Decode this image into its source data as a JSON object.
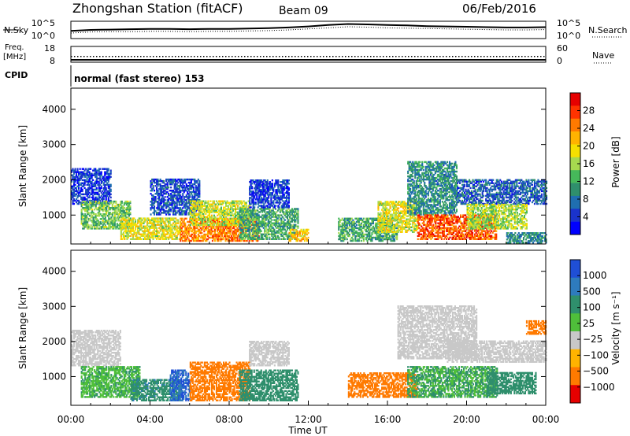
{
  "header": {
    "title": "Zhongshan Station (fitACF)",
    "beam": "Beam 09",
    "date": "06/Feb/2016"
  },
  "chart_data": [
    {
      "type": "line",
      "panel": "noise",
      "left_label": "N.Sky",
      "right_label": "N.Search",
      "left_ticks": [
        "10^5",
        "10^0"
      ],
      "right_ticks": [
        "10^5",
        "10^0"
      ],
      "x": [
        0,
        1,
        2,
        3,
        4,
        5,
        6,
        7,
        8,
        9,
        10,
        11,
        12,
        13,
        14,
        15,
        16,
        17,
        18,
        19,
        20,
        21,
        22,
        23,
        24
      ],
      "series": [
        {
          "name": "N.Sky",
          "style": "solid",
          "values": [
            2.2,
            2.5,
            2.6,
            2.7,
            2.8,
            2.8,
            2.7,
            2.8,
            2.8,
            2.9,
            3.0,
            3.2,
            3.5,
            3.9,
            4.2,
            4.1,
            3.9,
            3.8,
            3.6,
            3.5,
            3.4,
            3.3,
            3.2,
            3.2,
            3.3
          ]
        },
        {
          "name": "N.Search",
          "style": "dotted",
          "values": [
            1.6,
            1.9,
            2.0,
            2.0,
            2.1,
            2.1,
            2.0,
            2.1,
            2.1,
            2.2,
            2.3,
            2.5,
            2.8,
            3.1,
            3.4,
            3.3,
            3.1,
            3.0,
            2.9,
            2.8,
            2.7,
            2.6,
            2.5,
            2.5,
            2.6
          ]
        }
      ],
      "ylim": [
        0,
        5
      ]
    },
    {
      "type": "line",
      "panel": "frequency",
      "left_label_lines": [
        "Freq.",
        "[MHz]"
      ],
      "right_label": "Nave",
      "left_ticks": [
        "18",
        "8"
      ],
      "right_ticks": [
        "60",
        "0"
      ],
      "series": [
        {
          "name": "Freq.",
          "style": "solid",
          "x": [
            0,
            24
          ],
          "values": [
            9.5,
            9.5
          ]
        },
        {
          "name": "Nave",
          "style": "dotted",
          "x": [
            0,
            24
          ],
          "values": [
            22,
            22
          ]
        }
      ],
      "ylim": [
        8,
        18
      ]
    },
    {
      "type": "text",
      "panel": "cpid",
      "left_label": "CPID",
      "text": "normal (fast stereo) 153"
    },
    {
      "type": "heatmap",
      "panel": "power",
      "ylabel": "Slant Range [km]",
      "yticks": [
        1000,
        2000,
        3000,
        4000
      ],
      "ylim": [
        180,
        4600
      ],
      "xlim": [
        0,
        24
      ],
      "colorbar": {
        "label": "Power [dB]",
        "ticks": [
          "28",
          "24",
          "20",
          "16",
          "12",
          "8",
          "4"
        ],
        "colors": [
          "#e60000",
          "#ff3300",
          "#ff7a00",
          "#ffb300",
          "#f5e000",
          "#a6d94f",
          "#46b85a",
          "#2f8f6c",
          "#1f6eb0",
          "#1a33cc",
          "#0000ff"
        ]
      },
      "bands": [
        {
          "t0": 0.0,
          "t1": 2.0,
          "r0": 1300,
          "r1": 2300,
          "level": 5
        },
        {
          "t0": 0.5,
          "t1": 3.0,
          "r0": 600,
          "r1": 1400,
          "level": 14
        },
        {
          "t0": 2.5,
          "t1": 5.5,
          "r0": 300,
          "r1": 900,
          "level": 18
        },
        {
          "t0": 4.0,
          "t1": 6.5,
          "r0": 1000,
          "r1": 2000,
          "level": 6
        },
        {
          "t0": 5.5,
          "t1": 9.5,
          "r0": 250,
          "r1": 900,
          "level": 24
        },
        {
          "t0": 6.0,
          "t1": 9.0,
          "r0": 700,
          "r1": 1400,
          "level": 17
        },
        {
          "t0": 8.5,
          "t1": 11.5,
          "r0": 300,
          "r1": 1200,
          "level": 12
        },
        {
          "t0": 9.0,
          "t1": 11.0,
          "r0": 1200,
          "r1": 2000,
          "level": 5
        },
        {
          "t0": 11.0,
          "t1": 12.0,
          "r0": 250,
          "r1": 600,
          "level": 20
        },
        {
          "t0": 13.5,
          "t1": 16.5,
          "r0": 250,
          "r1": 900,
          "level": 12
        },
        {
          "t0": 15.5,
          "t1": 17.5,
          "r0": 500,
          "r1": 1400,
          "level": 18
        },
        {
          "t0": 17.0,
          "t1": 19.5,
          "r0": 1000,
          "r1": 2500,
          "level": 10
        },
        {
          "t0": 17.5,
          "t1": 21.5,
          "r0": 300,
          "r1": 1000,
          "level": 26
        },
        {
          "t0": 19.5,
          "t1": 24.0,
          "r0": 1300,
          "r1": 2000,
          "level": 7
        },
        {
          "t0": 20.0,
          "t1": 23.0,
          "r0": 600,
          "r1": 1300,
          "level": 16
        },
        {
          "t0": 22.0,
          "t1": 24.0,
          "r0": 200,
          "r1": 500,
          "level": 10
        }
      ]
    },
    {
      "type": "heatmap",
      "panel": "velocity",
      "ylabel": "Slant Range [km]",
      "yticks": [
        1000,
        2000,
        3000,
        4000
      ],
      "ylim": [
        180,
        4600
      ],
      "xlim": [
        0,
        24
      ],
      "colorbar": {
        "label": "Velocity [m s⁻¹]",
        "ticks": [
          "1000",
          "500",
          "100",
          "25",
          "−25",
          "−100",
          "−500",
          "−1000"
        ],
        "colors": [
          "#1f4fd6",
          "#2e7bbd",
          "#2f8f6c",
          "#4fbf3a",
          "#c8c8c8",
          "#ffb300",
          "#ff7a00",
          "#e60000"
        ]
      },
      "bands": [
        {
          "t0": 0.0,
          "t1": 2.5,
          "r0": 1300,
          "r1": 2300,
          "level": 0
        },
        {
          "t0": 0.5,
          "t1": 3.5,
          "r0": 400,
          "r1": 1300,
          "level": 50
        },
        {
          "t0": 3.0,
          "t1": 5.5,
          "r0": 300,
          "r1": 900,
          "level": 200
        },
        {
          "t0": 5.0,
          "t1": 6.0,
          "r0": 300,
          "r1": 1200,
          "level": 700
        },
        {
          "t0": 6.0,
          "t1": 9.0,
          "r0": 300,
          "r1": 1400,
          "level": -200
        },
        {
          "t0": 8.5,
          "t1": 11.5,
          "r0": 300,
          "r1": 1200,
          "level": 150
        },
        {
          "t0": 9.0,
          "t1": 11.0,
          "r0": 1300,
          "r1": 2000,
          "level": 0
        },
        {
          "t0": 14.0,
          "t1": 17.5,
          "r0": 400,
          "r1": 1100,
          "level": -200
        },
        {
          "t0": 16.5,
          "t1": 20.5,
          "r0": 1500,
          "r1": 3000,
          "level": 0
        },
        {
          "t0": 17.0,
          "t1": 21.5,
          "r0": 400,
          "r1": 1300,
          "level": 60
        },
        {
          "t0": 19.0,
          "t1": 24.0,
          "r0": 1400,
          "r1": 2000,
          "level": 0
        },
        {
          "t0": 21.0,
          "t1": 23.5,
          "r0": 500,
          "r1": 1100,
          "level": 150
        },
        {
          "t0": 23.0,
          "t1": 24.0,
          "r0": 2200,
          "r1": 2600,
          "level": -200
        }
      ]
    }
  ],
  "xaxis": {
    "label": "Time UT",
    "ticks": [
      "00:00",
      "04:00",
      "08:00",
      "12:00",
      "16:00",
      "20:00",
      "00:00"
    ],
    "tick_hours": [
      0,
      4,
      8,
      12,
      16,
      20,
      24
    ]
  }
}
